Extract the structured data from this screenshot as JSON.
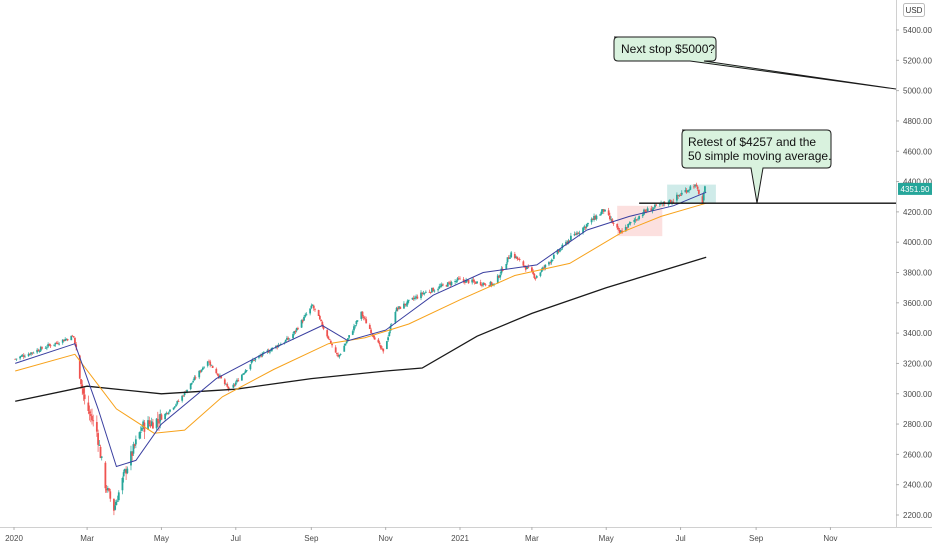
{
  "chart_data": {
    "type": "candlestick",
    "currency": "USD",
    "last_price": "4351.90",
    "y_axis": {
      "ticks": [
        "2200.00",
        "2400.00",
        "2600.00",
        "2800.00",
        "3000.00",
        "3200.00",
        "3400.00",
        "3600.00",
        "3800.00",
        "4000.00",
        "4200.00",
        "4400.00",
        "4600.00",
        "4800.00",
        "5000.00",
        "5200.00",
        "5400.00"
      ],
      "range": [
        2100,
        5550
      ]
    },
    "x_axis": {
      "ticks": [
        "2020",
        "Mar",
        "May",
        "Jul",
        "Sep",
        "Nov",
        "2021",
        "Mar",
        "May",
        "Jul",
        "Sep",
        "Nov"
      ]
    },
    "price_path": [
      [
        "2020-01-02",
        3230
      ],
      [
        "2020-01-24",
        3300
      ],
      [
        "2020-02-19",
        3380
      ],
      [
        "2020-02-28",
        2950
      ],
      [
        "2020-03-09",
        2750
      ],
      [
        "2020-03-16",
        2400
      ],
      [
        "2020-03-23",
        2240
      ],
      [
        "2020-04-01",
        2480
      ],
      [
        "2020-04-15",
        2780
      ],
      [
        "2020-05-01",
        2840
      ],
      [
        "2020-05-15",
        2950
      ],
      [
        "2020-06-08",
        3220
      ],
      [
        "2020-06-26",
        3020
      ],
      [
        "2020-07-15",
        3220
      ],
      [
        "2020-08-15",
        3370
      ],
      [
        "2020-09-02",
        3580
      ],
      [
        "2020-09-23",
        3240
      ],
      [
        "2020-10-12",
        3530
      ],
      [
        "2020-10-30",
        3270
      ],
      [
        "2020-11-09",
        3550
      ],
      [
        "2020-12-01",
        3660
      ],
      [
        "2020-12-31",
        3750
      ],
      [
        "2021-01-29",
        3720
      ],
      [
        "2021-02-12",
        3930
      ],
      [
        "2021-03-04",
        3770
      ],
      [
        "2021-04-01",
        4020
      ],
      [
        "2021-04-29",
        4210
      ],
      [
        "2021-05-12",
        4060
      ],
      [
        "2021-06-01",
        4200
      ],
      [
        "2021-06-25",
        4280
      ],
      [
        "2021-07-12",
        4380
      ],
      [
        "2021-07-16",
        4330
      ],
      [
        "2021-07-19",
        4258
      ],
      [
        "2021-07-21",
        4352
      ]
    ],
    "series": [
      {
        "name": "",
        "color": "#1a1a1a",
        "points": [
          [
            "2020-01-02",
            2950
          ],
          [
            "2020-03-01",
            3050
          ],
          [
            "2020-05-01",
            3000
          ],
          [
            "2020-07-01",
            3030
          ],
          [
            "2020-09-01",
            3100
          ],
          [
            "2020-11-01",
            3150
          ],
          [
            "2020-12-01",
            3170
          ],
          [
            "2021-01-15",
            3380
          ],
          [
            "2021-03-01",
            3530
          ],
          [
            "2021-05-01",
            3700
          ],
          [
            "2021-07-22",
            3900
          ]
        ]
      },
      {
        "name": "",
        "color": "#f7a21b",
        "points": [
          [
            "2020-01-02",
            3150
          ],
          [
            "2020-02-20",
            3260
          ],
          [
            "2020-03-25",
            2900
          ],
          [
            "2020-04-25",
            2740
          ],
          [
            "2020-05-20",
            2760
          ],
          [
            "2020-06-20",
            2980
          ],
          [
            "2020-08-01",
            3160
          ],
          [
            "2020-09-15",
            3330
          ],
          [
            "2020-10-15",
            3370
          ],
          [
            "2020-11-20",
            3460
          ],
          [
            "2021-01-01",
            3620
          ],
          [
            "2021-02-15",
            3780
          ],
          [
            "2021-04-01",
            3860
          ],
          [
            "2021-05-15",
            4070
          ],
          [
            "2021-06-15",
            4170
          ],
          [
            "2021-07-22",
            4257
          ]
        ]
      },
      {
        "name": "",
        "color": "#3a3fa0",
        "points": [
          [
            "2020-01-02",
            3200
          ],
          [
            "2020-02-20",
            3330
          ],
          [
            "2020-03-10",
            2900
          ],
          [
            "2020-03-25",
            2520
          ],
          [
            "2020-04-10",
            2560
          ],
          [
            "2020-05-01",
            2800
          ],
          [
            "2020-06-15",
            3100
          ],
          [
            "2020-08-01",
            3300
          ],
          [
            "2020-09-10",
            3450
          ],
          [
            "2020-10-01",
            3350
          ],
          [
            "2020-11-01",
            3420
          ],
          [
            "2020-12-10",
            3650
          ],
          [
            "2021-01-20",
            3800
          ],
          [
            "2021-03-05",
            3850
          ],
          [
            "2021-04-15",
            4080
          ],
          [
            "2021-05-20",
            4170
          ],
          [
            "2021-06-25",
            4240
          ],
          [
            "2021-07-22",
            4330
          ]
        ]
      }
    ],
    "support_level": 4257,
    "target_level": 5000,
    "zones": [
      {
        "kind": "red",
        "from": "2021-05-10",
        "to": "2021-06-16",
        "low": 4040,
        "high": 4240
      },
      {
        "kind": "green",
        "from": "2021-06-20",
        "to": "2021-07-30",
        "low": 4260,
        "high": 4380
      }
    ]
  },
  "annotations": {
    "callout_target": "Next stop $5000?",
    "callout_retest_line1": "Retest of $4257 and the",
    "callout_retest_line2": "50 simple moving average."
  },
  "colors": {
    "up": "#26a69a",
    "down": "#ef5350",
    "callout_fill": "#d9f2de",
    "price_tag": "#26a69a"
  }
}
